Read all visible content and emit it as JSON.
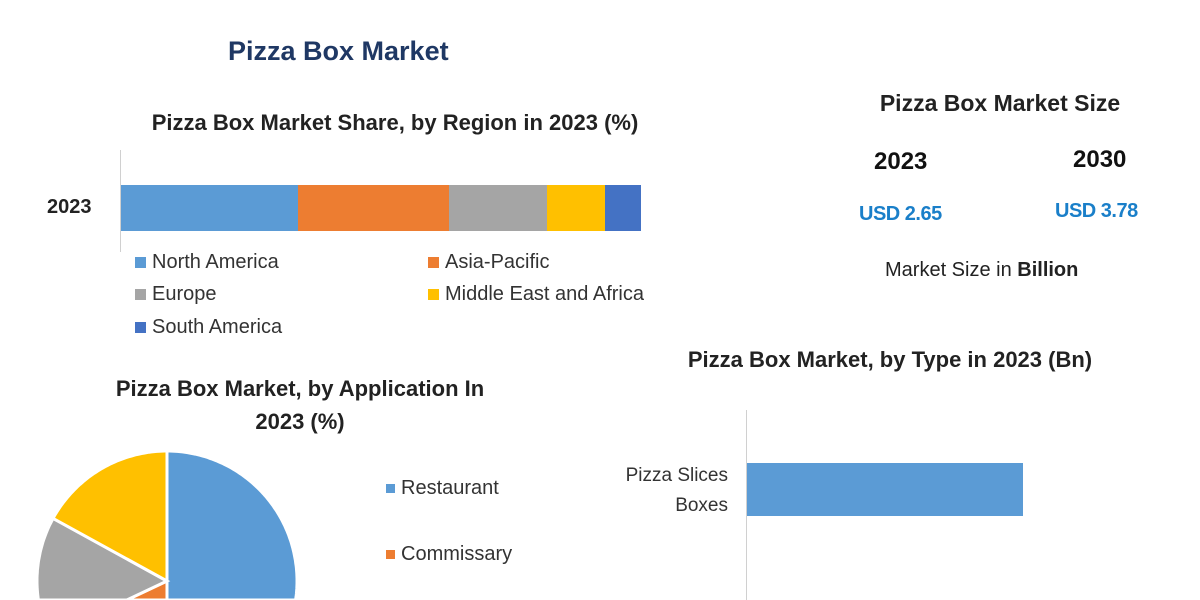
{
  "title": "Pizza Box Market",
  "colors": {
    "north_america": "#5b9bd5",
    "asia_pacific": "#ed7d31",
    "europe": "#a5a5a5",
    "mea": "#ffc000",
    "south_america": "#4472c4",
    "usd": "#1a7fc9",
    "title": "#1f3864"
  },
  "market_size": {
    "title": "Pizza Box Market Size",
    "years": [
      {
        "year": "2023",
        "value": "USD 2.65"
      },
      {
        "year": "2030",
        "value": "USD 3.78"
      }
    ],
    "note_prefix": "Market Size in ",
    "note_bold": "Billion"
  },
  "chart_data": [
    {
      "type": "bar",
      "orientation": "horizontal-stacked",
      "title": "Pizza Box Market Share, by Region in 2023 (%)",
      "categories": [
        "2023"
      ],
      "series": [
        {
          "name": "North America",
          "values": [
            34
          ],
          "color": "#5b9bd5"
        },
        {
          "name": "Asia-Pacific",
          "values": [
            29
          ],
          "color": "#ed7d31"
        },
        {
          "name": "Europe",
          "values": [
            19
          ],
          "color": "#a5a5a5"
        },
        {
          "name": "Middle East and Africa",
          "values": [
            11
          ],
          "color": "#ffc000"
        },
        {
          "name": "South America",
          "values": [
            7
          ],
          "color": "#4472c4"
        }
      ],
      "xlim": [
        0,
        100
      ],
      "legend": "bottom"
    },
    {
      "type": "pie",
      "title": "Pizza Box Market, by Application In 2023 (%)",
      "title_lines": [
        "Pizza Box Market, by Application In",
        "2023 (%)"
      ],
      "slices": [
        {
          "name": "Restaurant",
          "value": 50,
          "color": "#5b9bd5"
        },
        {
          "name": "Commissary",
          "value": 5,
          "color": "#ed7d31"
        },
        {
          "name": "",
          "value": 28,
          "color": "#a5a5a5"
        },
        {
          "name": "",
          "value": 17,
          "color": "#ffc000"
        }
      ],
      "legend": "right"
    },
    {
      "type": "bar",
      "orientation": "horizontal",
      "title": "Pizza Box Market, by Type in 2023 (Bn)",
      "categories": [
        [
          "Pizza Slices",
          "Boxes"
        ]
      ],
      "values": [
        1.2
      ],
      "xlim": [
        0,
        1.6
      ],
      "color": "#5b9bd5"
    }
  ]
}
